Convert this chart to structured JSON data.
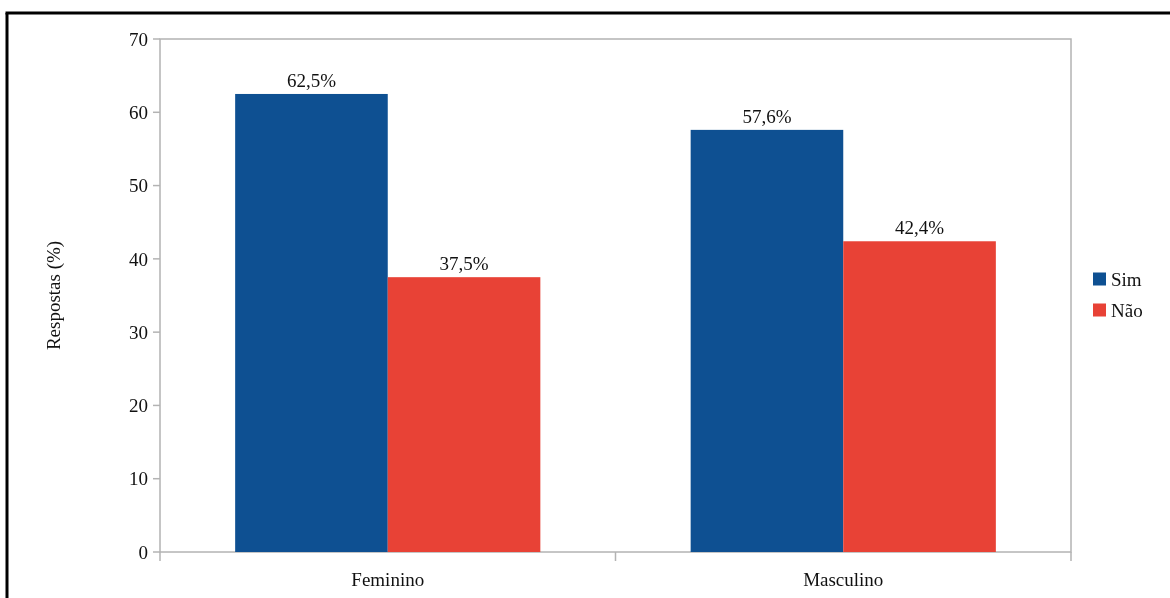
{
  "chart_data": {
    "type": "bar",
    "ylabel": "Respostas (%)",
    "categories": [
      "Feminino",
      "Masculino"
    ],
    "series": [
      {
        "name": "Sim",
        "color": "#0e5092",
        "values": [
          62.5,
          57.6
        ],
        "value_labels": [
          "62,5%",
          "57,6%"
        ]
      },
      {
        "name": "Não",
        "color": "#e84236",
        "values": [
          37.5,
          42.4
        ],
        "value_labels": [
          "37,5%",
          "42,4%"
        ]
      }
    ],
    "ylim": [
      0,
      70
    ],
    "yticks": [
      0,
      10,
      20,
      30,
      40,
      50,
      60,
      70
    ],
    "legend": "right"
  }
}
